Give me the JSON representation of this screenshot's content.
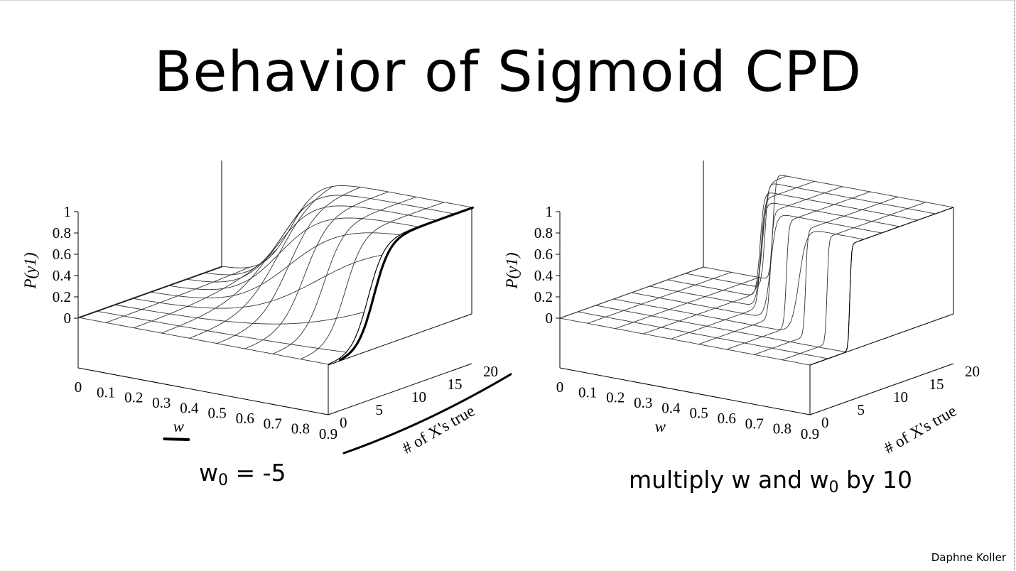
{
  "slide": {
    "title": "Behavior of Sigmoid CPD",
    "caption_left_prefix": "w",
    "caption_left_sub": "0",
    "caption_left_suffix": " = -5",
    "caption_right_prefix": "multiply w and w",
    "caption_right_sub": "0",
    "caption_right_suffix": " by 10",
    "credit": "Daphne Koller"
  },
  "chart_data": [
    {
      "type": "surface",
      "title": "",
      "xlabel": "w",
      "ylabel": "# of X's true",
      "zlabel": "P(y1)",
      "w_ticks": [
        "0",
        "0.1",
        "0.2",
        "0.3",
        "0.4",
        "0.5",
        "0.6",
        "0.7",
        "0.8",
        "0.9"
      ],
      "n_ticks": [
        "0",
        "5",
        "10",
        "15",
        "20"
      ],
      "z_ticks": [
        "0",
        "0.2",
        "0.4",
        "0.6",
        "0.8",
        "1"
      ],
      "w_range": [
        0,
        0.9
      ],
      "n_range": [
        0,
        20
      ],
      "z_range": [
        0,
        1
      ],
      "w0": -5,
      "scale": 1,
      "function": "P(y1) = sigmoid(w0 + w * n)",
      "annotated": true
    },
    {
      "type": "surface",
      "title": "",
      "xlabel": "w",
      "ylabel": "# of X's true",
      "zlabel": "P(y1)",
      "w_ticks": [
        "0",
        "0.1",
        "0.2",
        "0.3",
        "0.4",
        "0.5",
        "0.6",
        "0.7",
        "0.8",
        "0.9"
      ],
      "n_ticks": [
        "0",
        "5",
        "10",
        "15",
        "20"
      ],
      "z_ticks": [
        "0",
        "0.2",
        "0.4",
        "0.6",
        "0.8",
        "1"
      ],
      "w_range": [
        0,
        0.9
      ],
      "n_range": [
        0,
        20
      ],
      "z_range": [
        0,
        1
      ],
      "w0": -5,
      "scale": 10,
      "function": "P(y1) = sigmoid(10 * (w0 + w * n))",
      "annotated": false
    }
  ]
}
